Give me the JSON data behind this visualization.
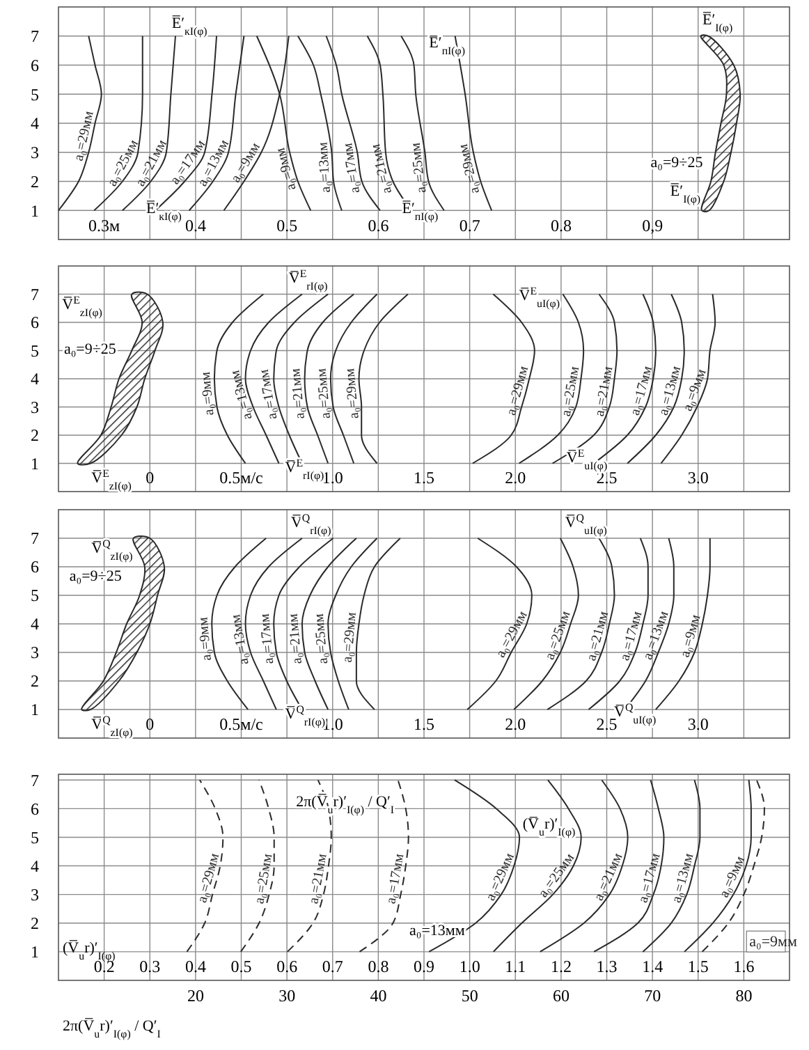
{
  "chart_data": [
    {
      "type": "line",
      "xlim": [
        0.25,
        1.05
      ],
      "ylim": [
        0,
        8
      ],
      "grid": true,
      "xticks": [
        {
          "value": 0.3,
          "label": "0.3м"
        },
        {
          "value": 0.35,
          "label": null
        },
        0.4,
        {
          "value": 0.45,
          "label": null
        },
        0.5,
        {
          "value": 0.55,
          "label": null
        },
        0.6,
        {
          "value": 0.65,
          "label": null
        },
        0.7,
        {
          "value": 0.75,
          "label": null
        },
        0.8,
        {
          "value": 0.85,
          "label": null
        },
        {
          "value": 0.9,
          "label": "0,9"
        },
        {
          "value": 0.95,
          "label": null
        },
        {
          "value": 1.0,
          "label": null
        }
      ],
      "yticks": [
        1,
        2,
        3,
        4,
        5,
        6,
        7
      ],
      "series": [
        {
          "name": "a₀=29мм",
          "color": "#2a2a2a",
          "x": [
            0.25,
            0.272,
            0.283,
            0.29,
            0.297,
            0.29,
            0.283
          ],
          "values": [
            1,
            2,
            3,
            4,
            5,
            6,
            7
          ]
        },
        {
          "name": "a₀=25мм",
          "color": "#2a2a2a",
          "x": [
            0.289,
            0.32,
            0.337,
            0.342,
            0.342
          ],
          "values": [
            1,
            2,
            3,
            5,
            7
          ]
        },
        {
          "name": "a₀=21мм",
          "color": "#2a2a2a",
          "x": [
            0.32,
            0.351,
            0.368,
            0.373,
            0.378
          ],
          "values": [
            1,
            2,
            3,
            5,
            7
          ]
        },
        {
          "name": "a₀=17мм",
          "color": "#2a2a2a",
          "x": [
            0.356,
            0.388,
            0.41,
            0.418,
            0.423
          ],
          "values": [
            1,
            2,
            3,
            5,
            7
          ]
        },
        {
          "name": "a₀=13мм",
          "color": "#2a2a2a",
          "x": [
            0.393,
            0.419,
            0.436,
            0.444,
            0.453
          ],
          "values": [
            1,
            2,
            3,
            5,
            7
          ]
        },
        {
          "name": "a₀=9мм",
          "color": "#2a2a2a",
          "x": [
            0.431,
            0.453,
            0.472,
            0.492,
            0.502
          ],
          "values": [
            1,
            2,
            3,
            5,
            7
          ]
        },
        {
          "name": "a₀=9мм",
          "color": "#2a2a2a",
          "x": [
            0.526,
            0.512,
            0.503,
            0.492,
            0.467
          ],
          "values": [
            1,
            2,
            3,
            5,
            7
          ]
        },
        {
          "name": "a₀=13мм",
          "color": "#2a2a2a",
          "x": [
            0.56,
            0.551,
            0.549,
            0.537,
            0.529,
            0.512
          ],
          "values": [
            1,
            2,
            3,
            5,
            6,
            7
          ]
        },
        {
          "name": "a₀=17мм",
          "color": "#2a2a2a",
          "x": [
            0.602,
            0.582,
            0.577,
            0.56,
            0.554,
            0.543
          ],
          "values": [
            1,
            2,
            3,
            5,
            6,
            7
          ]
        },
        {
          "name": "a₀=21мм",
          "color": "#2a2a2a",
          "x": [
            0.636,
            0.616,
            0.608,
            0.605,
            0.602,
            0.588
          ],
          "values": [
            1,
            2,
            3,
            5,
            6,
            7
          ]
        },
        {
          "name": "a₀=25мм",
          "color": "#2a2a2a",
          "x": [
            0.672,
            0.655,
            0.651,
            0.641,
            0.639,
            0.625
          ],
          "values": [
            1,
            2,
            3,
            5,
            6,
            7
          ]
        },
        {
          "name": "a₀=29мм",
          "color": "#2a2a2a",
          "x": [
            0.724,
            0.712,
            0.704,
            0.695,
            0.684
          ],
          "values": [
            1,
            2,
            3,
            5,
            7
          ]
        },
        {
          "type": "area",
          "color": "#2a2a2a",
          "x": [
            0.954,
            0.964,
            0.969,
            0.975,
            0.981,
            0.978,
            0.953,
            0.961,
            0.989,
            0.996,
            0.992,
            0.986,
            0.978,
            0.962
          ],
          "values": [
            1,
            2,
            3,
            4,
            5,
            6,
            7,
            7,
            6,
            5,
            4,
            3,
            2,
            1
          ]
        }
      ],
      "annotations": [
        "E̅′$_{кI(φ)}$",
        "E̅′$_{кI(φ)}$",
        "E̅′$_{пI(φ)}$",
        "E̅′$_{пI(φ)}$",
        "E̅′$_{I(φ)}$",
        "E̅′$_{I(φ)}$",
        "a₀=9÷25"
      ]
    },
    {
      "type": "line",
      "xlim": [
        -0.5,
        3.5
      ],
      "ylim": [
        0,
        8
      ],
      "grid": true,
      "xticks": [
        {
          "value": -0.25,
          "label": null
        },
        0,
        {
          "value": 0.25,
          "label": null
        },
        {
          "value": 0.5,
          "label": "0.5м/с"
        },
        {
          "value": 0.75,
          "label": null
        },
        {
          "value": 1,
          "label": "1.0"
        },
        {
          "value": 1.25,
          "label": null
        },
        1.5,
        {
          "value": 1.75,
          "label": null
        },
        {
          "value": 2,
          "label": "2.0"
        },
        {
          "value": 2.25,
          "label": null
        },
        2.5,
        {
          "value": 2.75,
          "label": null
        },
        {
          "value": 3,
          "label": "3.0"
        },
        {
          "value": 3.25,
          "label": null
        }
      ],
      "yticks": [
        1,
        2,
        3,
        4,
        5,
        6,
        7
      ],
      "series": [
        {
          "name": "a₀=9мм",
          "color": "#2a2a2a",
          "x": [
            0.523,
            0.424,
            0.367,
            0.353,
            0.367,
            0.452,
            0.621
          ],
          "values": [
            1,
            2,
            3,
            4,
            5,
            6,
            7
          ]
        },
        {
          "name": "a₀=13мм",
          "color": "#2a2a2a",
          "x": [
            0.706,
            0.636,
            0.565,
            0.523,
            0.551,
            0.65,
            0.833
          ],
          "values": [
            1,
            2,
            3,
            4,
            5,
            6,
            7
          ]
        },
        {
          "name": "a₀=17мм",
          "color": "#2a2a2a",
          "x": [
            0.833,
            0.763,
            0.706,
            0.678,
            0.692,
            0.791,
            0.975
          ],
          "values": [
            1,
            2,
            3,
            4,
            5,
            6,
            7
          ]
        },
        {
          "name": "a₀=21мм",
          "color": "#2a2a2a",
          "x": [
            0.975,
            0.918,
            0.862,
            0.847,
            0.862,
            0.946,
            1.116
          ],
          "values": [
            1,
            2,
            3,
            4,
            5,
            6,
            7
          ]
        },
        {
          "name": "a₀=25мм",
          "color": "#2a2a2a",
          "x": [
            1.116,
            1.059,
            1.003,
            0.989,
            1.017,
            1.102,
            1.243
          ],
          "values": [
            1,
            2,
            3,
            4,
            5,
            6,
            7
          ]
        },
        {
          "name": "a₀=29мм",
          "color": "#2a2a2a",
          "x": [
            1.243,
            1.158,
            1.158,
            1.144,
            1.172,
            1.257,
            1.412
          ],
          "values": [
            1,
            2,
            3,
            4,
            5,
            6,
            7
          ]
        },
        {
          "name": "a₀=29мм",
          "color": "#2a2a2a",
          "x": [
            1.766,
            1.977,
            2.034,
            2.076,
            2.105,
            2.034,
            1.879
          ],
          "values": [
            1,
            2,
            3,
            4,
            5,
            6,
            7
          ]
        },
        {
          "name": "a₀=25мм",
          "color": "#2a2a2a",
          "x": [
            2.02,
            2.232,
            2.331,
            2.359,
            2.373,
            2.345,
            2.26
          ],
          "values": [
            1,
            2,
            3,
            4,
            5,
            6,
            7
          ]
        },
        {
          "name": "a₀=21мм",
          "color": "#2a2a2a",
          "x": [
            2.203,
            2.429,
            2.514,
            2.542,
            2.556,
            2.542,
            2.458
          ],
          "values": [
            1,
            2,
            3,
            4,
            5,
            6,
            7
          ]
        },
        {
          "name": "a₀=17мм",
          "color": "#2a2a2a",
          "x": [
            2.429,
            2.613,
            2.712,
            2.754,
            2.768,
            2.754,
            2.698
          ],
          "values": [
            1,
            2,
            3,
            4,
            5,
            6,
            7
          ]
        },
        {
          "name": "a₀=13мм",
          "color": "#2a2a2a",
          "x": [
            2.613,
            2.768,
            2.867,
            2.91,
            2.924,
            2.91,
            2.853
          ],
          "values": [
            1,
            2,
            3,
            4,
            5,
            6,
            7
          ]
        },
        {
          "name": "a₀=9мм",
          "color": "#2a2a2a",
          "x": [
            2.797,
            2.91,
            2.994,
            3.051,
            3.065,
            3.093,
            3.079
          ],
          "values": [
            1,
            2,
            3,
            4,
            5,
            6,
            7
          ]
        },
        {
          "type": "area",
          "color": "#2a2a2a",
          "x": [
            -0.395,
            -0.268,
            -0.212,
            -0.169,
            -0.099,
            -0.042,
            -0.099,
            -0.014,
            0.071,
            0.028,
            -0.028,
            -0.071,
            -0.155,
            -0.325
          ],
          "values": [
            1,
            2,
            3,
            4,
            5,
            6,
            7,
            7,
            6,
            5,
            4,
            3,
            2,
            1
          ]
        }
      ],
      "annotations": [
        "V̅$^{E}$$_{zI(φ)}$",
        "V̅$^{E}$$_{zI(φ)}$",
        "V̅$^{E}$$_{rI(φ)}$",
        "V̅$^{E}$$_{rI(φ)}$",
        "V̅$^{E}$$_{uI(φ)}$",
        "V̅$^{E}$$_{uI(φ)}$",
        "a₀=9÷25"
      ]
    },
    {
      "type": "line",
      "xlim": [
        -0.5,
        3.5
      ],
      "ylim": [
        0,
        8
      ],
      "grid": true,
      "xticks": [
        {
          "value": -0.25,
          "label": null
        },
        0,
        {
          "value": 0.25,
          "label": null
        },
        {
          "value": 0.5,
          "label": "0.5м/с"
        },
        {
          "value": 0.75,
          "label": null
        },
        {
          "value": 1,
          "label": "1.0"
        },
        {
          "value": 1.25,
          "label": null
        },
        1.5,
        {
          "value": 1.75,
          "label": null
        },
        {
          "value": 2,
          "label": "2.0"
        },
        {
          "value": 2.25,
          "label": null
        },
        2.5,
        {
          "value": 2.75,
          "label": null
        },
        {
          "value": 3,
          "label": "3.0"
        },
        {
          "value": 3.25,
          "label": null
        }
      ],
      "yticks": [
        1,
        2,
        3,
        4,
        5,
        6,
        7
      ],
      "series": [
        {
          "name": "a₀=9мм",
          "color": "#2a2a2a",
          "x": [
            0.537,
            0.424,
            0.353,
            0.339,
            0.367,
            0.466,
            0.636
          ],
          "values": [
            1,
            2,
            3,
            4,
            5,
            6,
            7
          ]
        },
        {
          "name": "a₀=13мм",
          "color": "#2a2a2a",
          "x": [
            0.692,
            0.621,
            0.551,
            0.523,
            0.551,
            0.65,
            0.833
          ],
          "values": [
            1,
            2,
            3,
            4,
            5,
            6,
            7
          ]
        },
        {
          "name": "a₀=17мм",
          "color": "#2a2a2a",
          "x": [
            0.833,
            0.749,
            0.692,
            0.678,
            0.706,
            0.819,
            1.003
          ],
          "values": [
            1,
            2,
            3,
            4,
            5,
            6,
            7
          ]
        },
        {
          "name": "a₀=21мм",
          "color": "#2a2a2a",
          "x": [
            0.975,
            0.904,
            0.847,
            0.833,
            0.876,
            0.975,
            1.13
          ],
          "values": [
            1,
            2,
            3,
            4,
            5,
            6,
            7
          ]
        },
        {
          "name": "a₀=25мм",
          "color": "#2a2a2a",
          "x": [
            1.088,
            1.031,
            0.989,
            0.975,
            1.017,
            1.102,
            1.243
          ],
          "values": [
            1,
            2,
            3,
            4,
            5,
            6,
            7
          ]
        },
        {
          "name": "a₀=29мм",
          "color": "#2a2a2a",
          "x": [
            1.229,
            1.13,
            1.13,
            1.144,
            1.172,
            1.229,
            1.37
          ],
          "values": [
            1,
            2,
            3,
            4,
            5,
            6,
            7
          ]
        },
        {
          "name": "a₀=29мм",
          "color": "#2a2a2a",
          "x": [
            1.737,
            1.893,
            1.977,
            2.062,
            2.09,
            2.006,
            1.794
          ],
          "values": [
            1,
            2,
            3,
            4,
            5,
            6,
            7
          ]
        },
        {
          "name": "a₀=25мм",
          "color": "#2a2a2a",
          "x": [
            1.992,
            2.147,
            2.246,
            2.302,
            2.345,
            2.316,
            2.246
          ],
          "values": [
            1,
            2,
            3,
            4,
            5,
            6,
            7
          ]
        },
        {
          "name": "a₀=21мм",
          "color": "#2a2a2a",
          "x": [
            2.175,
            2.387,
            2.472,
            2.514,
            2.542,
            2.528,
            2.458
          ],
          "values": [
            1,
            2,
            3,
            4,
            5,
            6,
            7
          ]
        },
        {
          "name": "a₀=17мм",
          "color": "#2a2a2a",
          "x": [
            2.401,
            2.571,
            2.655,
            2.698,
            2.726,
            2.726,
            2.684
          ],
          "values": [
            1,
            2,
            3,
            4,
            5,
            6,
            7
          ]
        },
        {
          "name": "a₀=13мм",
          "color": "#2a2a2a",
          "x": [
            2.599,
            2.712,
            2.782,
            2.839,
            2.867,
            2.867,
            2.839
          ],
          "values": [
            1,
            2,
            3,
            4,
            5,
            6,
            7
          ]
        },
        {
          "name": "a₀=9мм",
          "color": "#2a2a2a",
          "x": [
            2.768,
            2.895,
            2.98,
            3.023,
            3.051,
            3.065,
            3.065
          ],
          "values": [
            1,
            2,
            3,
            4,
            5,
            6,
            7
          ]
        },
        {
          "type": "area",
          "color": "#2a2a2a",
          "x": [
            -0.373,
            -0.254,
            -0.184,
            -0.127,
            -0.056,
            -0.028,
            -0.09,
            0,
            0.079,
            0.042,
            0,
            -0.071,
            -0.169,
            -0.325
          ],
          "values": [
            1,
            2,
            3,
            4,
            5,
            6,
            7,
            7,
            6,
            5,
            4,
            3,
            2,
            1
          ]
        }
      ],
      "annotations": [
        "V̅$^{Q}$$_{zI(φ)}$",
        "V̅$^{Q}$$_{zI(φ)}$",
        "V̅$^{Q}$$_{rI(φ)}$",
        "V̅$^{Q}$$_{rI(φ)}$",
        "V̅$^{Q}$$_{uI(φ)}$",
        "V̅$^{Q}$$_{uI(φ)}$",
        "a₀=9÷25"
      ]
    },
    {
      "type": "line",
      "xlim": [
        0.1,
        1.7
      ],
      "ylim": [
        0,
        7.2
      ],
      "grid": true,
      "x2lim": [
        5,
        85
      ],
      "xlabel": "(V̅$_{u}$r)′$_{I(φ)}$",
      "x2label": "2π(V̅$_{u}$r)′$_{I(φ)}$ / Q′$_{I}$",
      "xticks": [
        0.2,
        0.3,
        0.4,
        0.5,
        0.6,
        0.7,
        0.8,
        0.9,
        {
          "value": 1,
          "label": "1.0"
        },
        1.1,
        1.2,
        1.3,
        1.4,
        1.5,
        1.6
      ],
      "x2ticks": [
        20,
        30,
        40,
        50,
        60,
        70,
        80
      ],
      "yticks": [
        1,
        2,
        3,
        4,
        5,
        6,
        7
      ],
      "series": [
        {
          "name": "a₀=29мм",
          "color": "#2a2a2a",
          "axis": "x2",
          "line_style": "dashed",
          "x": [
            19.05,
            21,
            21.85,
            22.7,
            23,
            22.15,
            20.45
          ],
          "values": [
            1,
            2,
            3,
            4,
            5,
            6,
            7
          ]
        },
        {
          "name": "a₀=25мм",
          "color": "#2a2a2a",
          "axis": "x2",
          "line_style": "dashed",
          "x": [
            24.95,
            26.95,
            28.05,
            28.6,
            28.6,
            28,
            26.95
          ],
          "values": [
            1,
            2,
            3,
            4,
            5,
            6,
            7
          ]
        },
        {
          "name": "a₀=21мм",
          "color": "#2a2a2a",
          "axis": "x2",
          "line_style": "dashed",
          "x": [
            30.05,
            32.85,
            34,
            34.55,
            34.85,
            34.55,
            33.4
          ],
          "values": [
            1,
            2,
            3,
            4,
            5,
            6,
            7
          ]
        },
        {
          "name": "a₀=17мм",
          "color": "#2a2a2a",
          "axis": "x2",
          "line_style": "dashed",
          "x": [
            37.95,
            41.6,
            42.45,
            43,
            43.3,
            43,
            42.15
          ],
          "values": [
            1,
            2,
            3,
            4,
            5,
            6,
            7
          ]
        },
        {
          "name": "a₀=9мм",
          "color": "#2a2a2a",
          "axis": "x2",
          "line_style": "dashed",
          "x": [
            75.45,
            78.3,
            80,
            81.1,
            81.95,
            82.25,
            81.4
          ],
          "values": [
            1,
            2,
            3,
            4,
            5,
            6,
            7
          ]
        },
        {
          "name": "a₀=29мм",
          "color": "#2a2a2a",
          "x": [
            0.911,
            1.013,
            1.069,
            1.097,
            1.109,
            1.058,
            0.967
          ],
          "values": [
            1,
            2,
            3,
            4,
            5,
            6,
            7
          ]
        },
        {
          "name": "a₀=25мм",
          "color": "#2a2a2a",
          "x": [
            1.052,
            1.114,
            1.182,
            1.227,
            1.244,
            1.216,
            1.171
          ],
          "values": [
            1,
            2,
            3,
            4,
            5,
            6,
            7
          ]
        },
        {
          "name": "a₀=21мм",
          "color": "#2a2a2a",
          "x": [
            1.154,
            1.25,
            1.306,
            1.334,
            1.346,
            1.329,
            1.289
          ],
          "values": [
            1,
            2,
            3,
            4,
            5,
            6,
            7
          ]
        },
        {
          "name": "a₀=17мм",
          "color": "#2a2a2a",
          "x": [
            1.272,
            1.368,
            1.402,
            1.419,
            1.425,
            1.413,
            1.396
          ],
          "values": [
            1,
            2,
            3,
            4,
            5,
            6,
            7
          ]
        },
        {
          "name": "a₀=13мм",
          "color": "#2a2a2a",
          "x": [
            1.379,
            1.441,
            1.475,
            1.492,
            1.504,
            1.504,
            1.492
          ],
          "values": [
            1,
            2,
            3,
            4,
            5,
            6,
            7
          ]
        },
        {
          "name": "a₀=9мм",
          "color": "#2a2a2a",
          "x": [
            1.47,
            1.532,
            1.577,
            1.605,
            1.616,
            1.616,
            1.611
          ],
          "values": [
            1,
            2,
            3,
            4,
            5,
            6,
            7
          ]
        }
      ],
      "annotations": [
        "2π(V̅$_{u}$r)′$_{I(φ)}$ / Q′$_{I}$",
        "(V̅$_{u}$r)′$_{I(φ)}$",
        "a₀=13мм"
      ]
    }
  ]
}
